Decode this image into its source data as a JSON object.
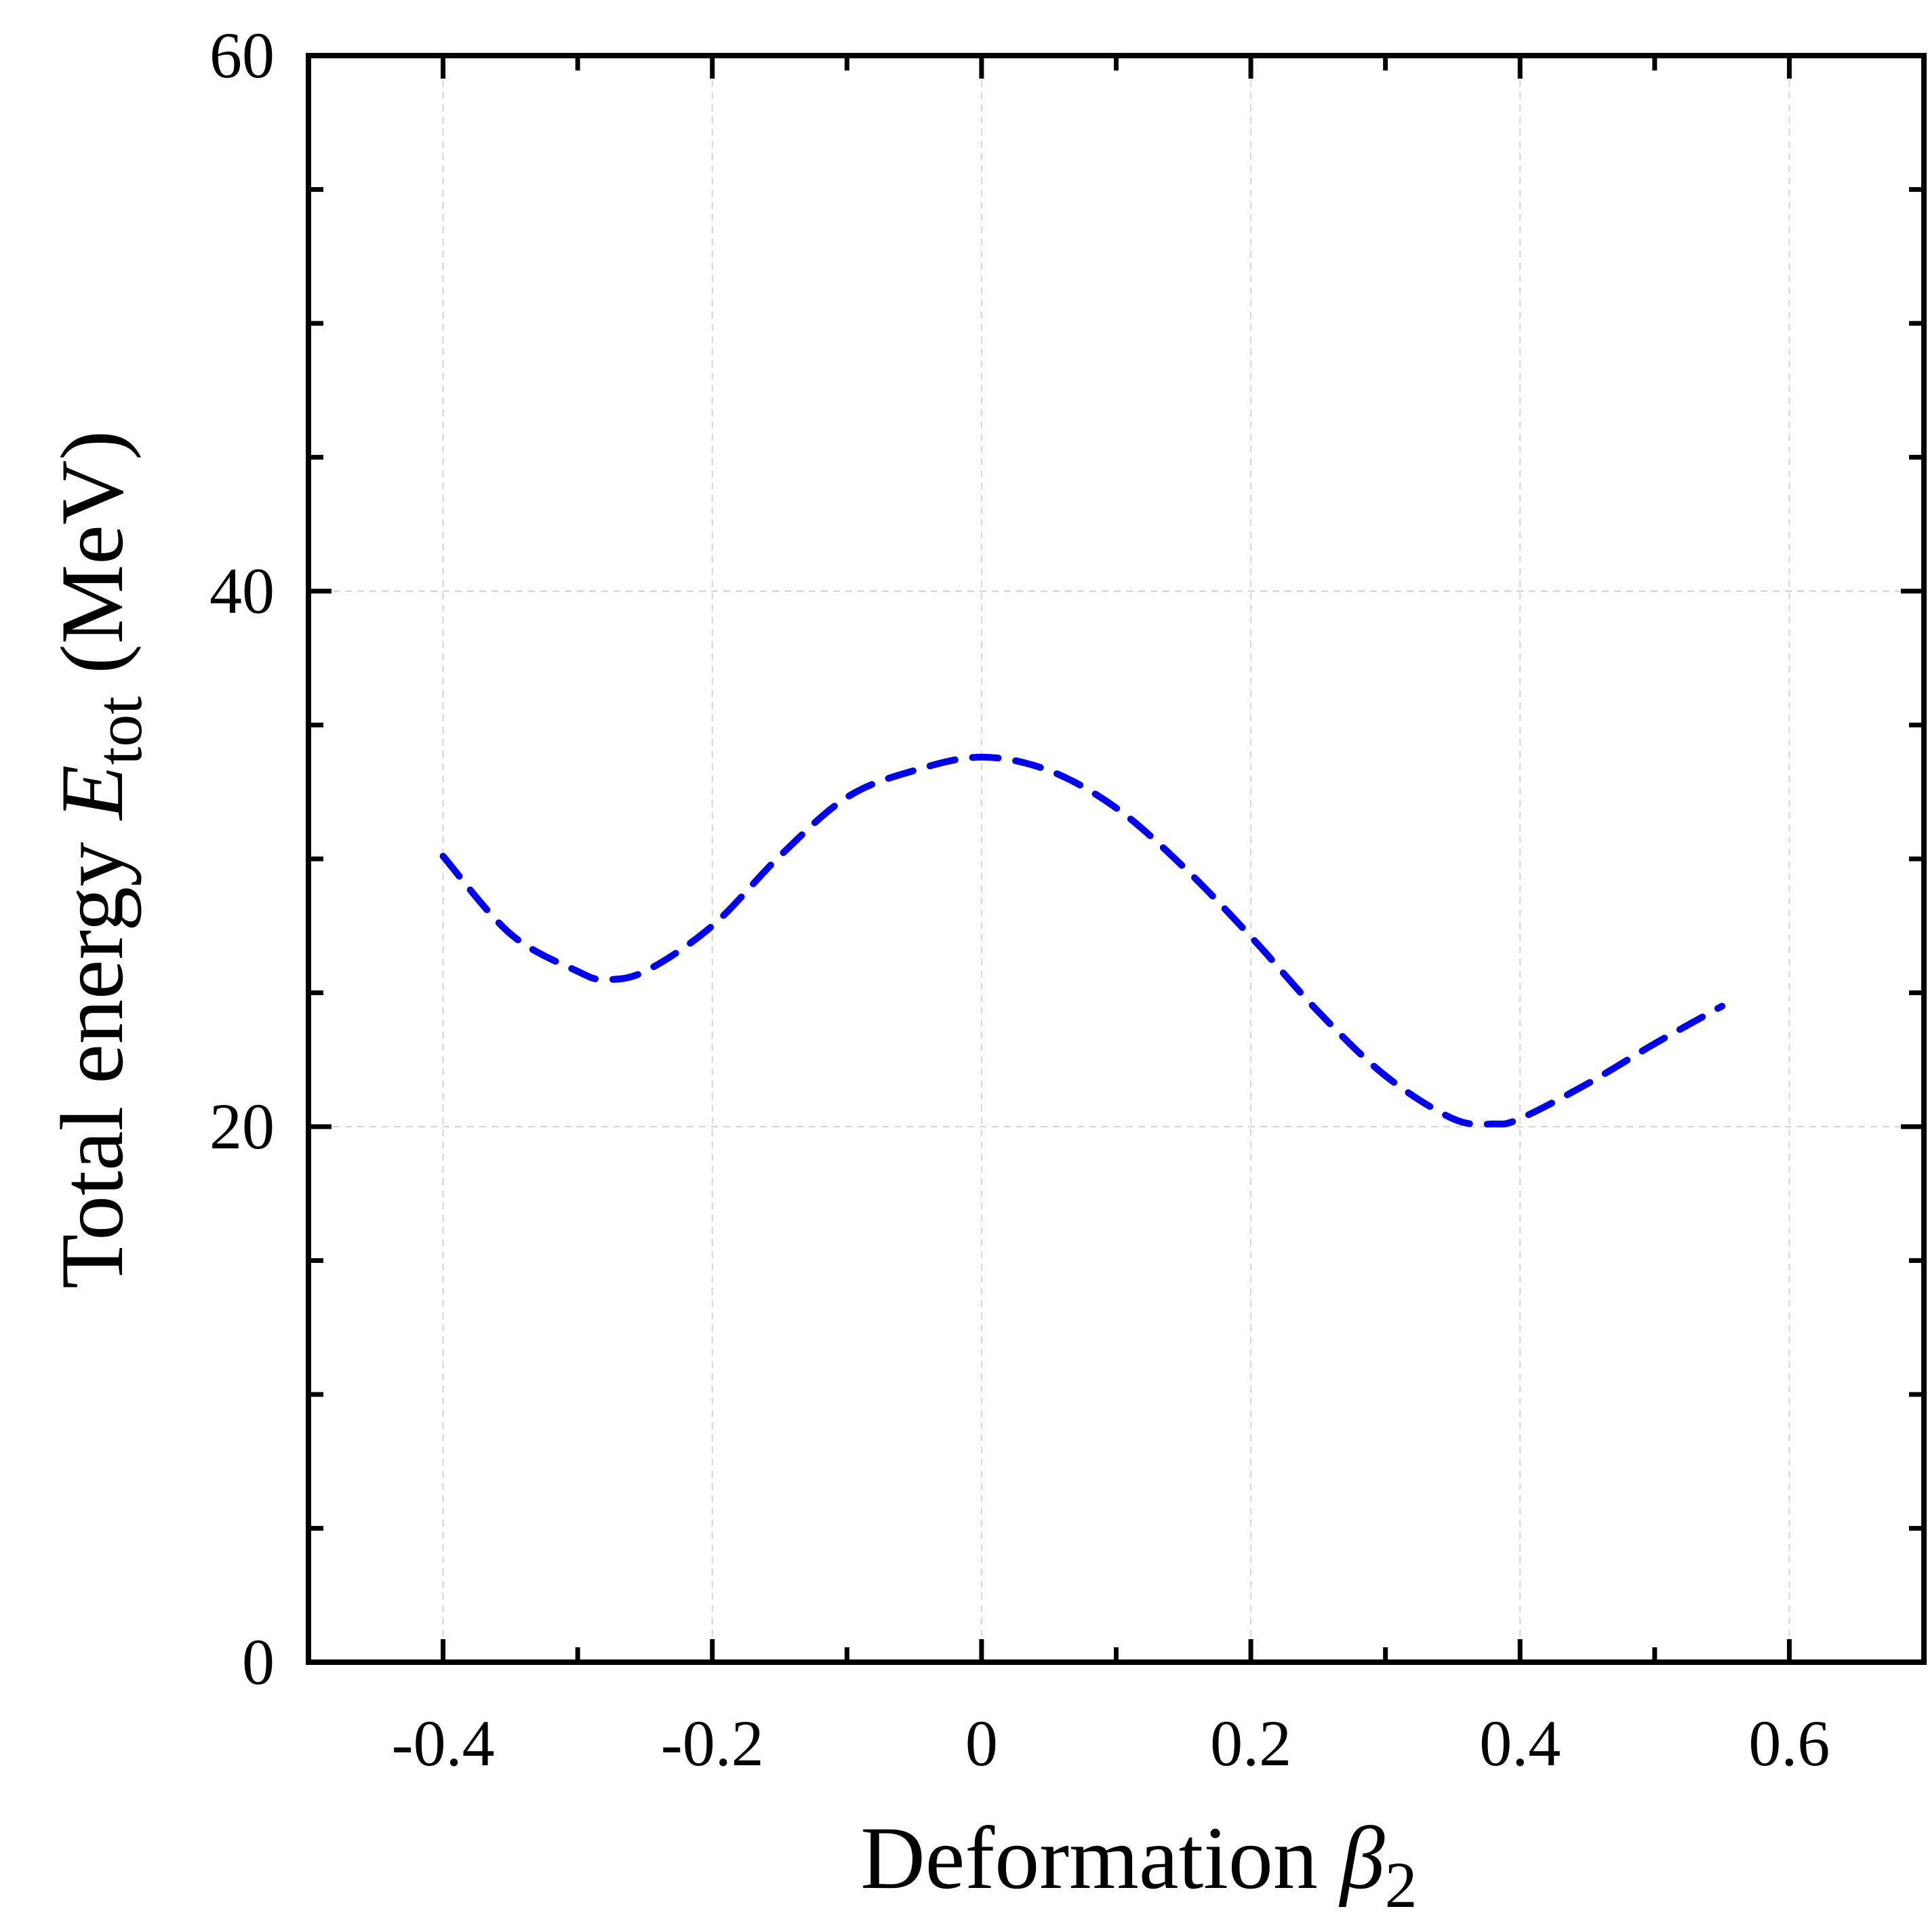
{
  "chart_data": {
    "type": "line",
    "title": "",
    "xlabel": {
      "text": "Deformation ",
      "symbol": "β",
      "subscript": "2"
    },
    "ylabel": {
      "text": "Total energy ",
      "symbol": "E",
      "subscript": "tot",
      "unit": " (MeV)"
    },
    "xlim": [
      -0.5,
      0.7
    ],
    "ylim": [
      0,
      60
    ],
    "xticks": [
      -0.4,
      -0.2,
      0,
      0.2,
      0.4,
      0.6
    ],
    "xtick_labels": [
      "-0.4",
      "-0.2",
      "0",
      "0.2",
      "0.4",
      "0.6"
    ],
    "yticks": [
      0,
      20,
      40,
      60
    ],
    "ytick_labels": [
      "0",
      "20",
      "40",
      "60"
    ],
    "x_minor_step": 0.1,
    "y_minor_step": 5,
    "grid": true,
    "legend": "none",
    "series": [
      {
        "color": "#0000ee",
        "style": "dashed",
        "x": [
          -0.4,
          -0.35,
          -0.3,
          -0.28,
          -0.25,
          -0.2,
          -0.15,
          -0.1,
          -0.05,
          0,
          0.05,
          0.1,
          0.15,
          0.2,
          0.25,
          0.3,
          0.35,
          0.38,
          0.4,
          0.45,
          0.5,
          0.55
        ],
        "y": [
          30.1,
          27.2,
          25.8,
          25.5,
          25.8,
          27.5,
          30.1,
          32.3,
          33.3,
          33.8,
          33.3,
          31.9,
          29.7,
          27.1,
          24.3,
          21.9,
          20.3,
          20.1,
          20.3,
          21.6,
          23.1,
          24.5
        ]
      }
    ]
  }
}
